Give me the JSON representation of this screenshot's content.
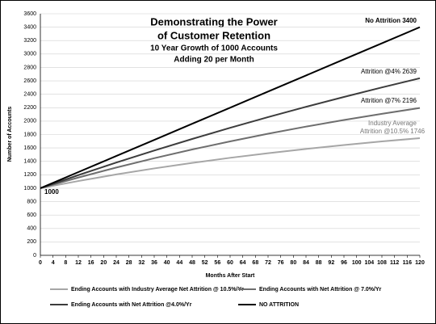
{
  "chart_data": {
    "type": "line",
    "title": [
      "Demonstrating the Power",
      "of Customer Retention"
    ],
    "subtitle": [
      "10 Year Growth of 1000 Accounts",
      "Adding 20 per Month"
    ],
    "x_label": "Months After Start",
    "y_label": "Number of Accounts",
    "x": [
      0,
      12,
      24,
      36,
      48,
      60,
      72,
      84,
      96,
      108,
      120
    ],
    "xlim": [
      0,
      120
    ],
    "xticks": [
      0,
      4,
      8,
      12,
      16,
      20,
      24,
      28,
      32,
      36,
      40,
      44,
      48,
      52,
      56,
      60,
      64,
      68,
      72,
      76,
      80,
      84,
      88,
      92,
      96,
      100,
      104,
      108,
      112,
      116,
      120
    ],
    "ylim": [
      0,
      3600
    ],
    "yticks": [
      0,
      200,
      400,
      600,
      800,
      1000,
      1200,
      1400,
      1600,
      1800,
      2000,
      2200,
      2400,
      2600,
      2800,
      3000,
      3200,
      3400,
      3600
    ],
    "grid": true,
    "legend": "bottom",
    "series": [
      {
        "name": "Ending Accounts with Industry Average Net Attrition @ 10.5%/Yr",
        "color": "#a6a6a6",
        "values": [
          1000,
          1107,
          1205,
          1295,
          1377,
          1453,
          1522,
          1585,
          1643,
          1697,
          1746
        ]
      },
      {
        "name": "Ending Accounts with Net Attrition @ 7.0%/Yr",
        "color": "#6e6e6e",
        "values": [
          1000,
          1159,
          1308,
          1447,
          1577,
          1698,
          1812,
          1918,
          2017,
          2109,
          2196
        ]
      },
      {
        "name": "Ending Accounts with Net Attrition @4.0%/Yr",
        "color": "#3c3c3c",
        "values": [
          1000,
          1195,
          1382,
          1561,
          1734,
          1900,
          2060,
          2213,
          2360,
          2502,
          2639
        ]
      },
      {
        "name": "NO ATTRITION",
        "color": "#000000",
        "values": [
          1000,
          1240,
          1480,
          1720,
          1960,
          2200,
          2440,
          2680,
          2920,
          3160,
          3400
        ]
      }
    ],
    "annotations": [
      "No Attrition 3400",
      "Attrition @4% 2639",
      "Attrition @7% 2196",
      "Industry Average",
      "Attrition @10.5% 1746",
      "1000"
    ]
  }
}
